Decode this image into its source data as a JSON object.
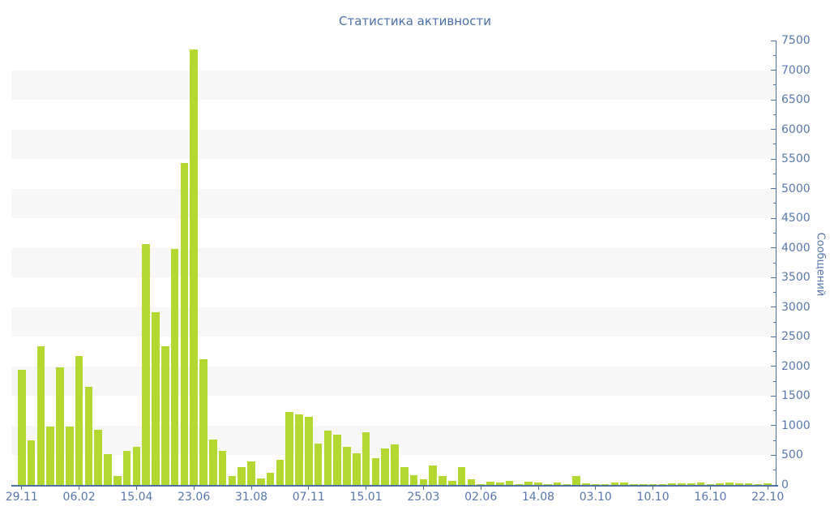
{
  "chart_data": {
    "type": "bar",
    "title": "Статистика активности",
    "ylabel": "Сообщений",
    "xlabel": "",
    "ylim": [
      0,
      7500
    ],
    "y_tick_step": 500,
    "y_minor_tick_step": 250,
    "y_tick_labels": [
      "0",
      "500",
      "1000",
      "1500",
      "2000",
      "2500",
      "3000",
      "3500",
      "4000",
      "4500",
      "5000",
      "5500",
      "6000",
      "6500",
      "7000",
      "7500"
    ],
    "x_tick_labels": [
      "29.11",
      "06.02",
      "15.04",
      "23.06",
      "31.08",
      "07.11",
      "15.01",
      "25.03",
      "02.06",
      "14.08",
      "03.10",
      "10.10",
      "16.10",
      "22.10"
    ],
    "x_label_every_n_bars": 6,
    "values": [
      1940,
      750,
      2340,
      980,
      1990,
      980,
      2170,
      1660,
      925,
      525,
      150,
      570,
      640,
      4070,
      2910,
      2340,
      3980,
      5430,
      7350,
      2120,
      760,
      580,
      150,
      295,
      400,
      110,
      200,
      420,
      1230,
      1190,
      1150,
      700,
      920,
      855,
      640,
      540,
      890,
      455,
      620,
      690,
      305,
      160,
      100,
      330,
      150,
      65,
      295,
      95,
      20,
      50,
      35,
      65,
      20,
      55,
      40,
      20,
      45,
      10,
      150,
      25,
      10,
      10,
      45,
      35,
      20,
      10,
      20,
      15,
      25,
      30,
      25,
      35,
      20,
      25,
      40,
      30,
      25,
      20,
      25
    ],
    "grid": "alternating horizontal bands every 500 units",
    "legend": "none",
    "axis_position": {
      "y_axis": "right",
      "x_axis": "bottom"
    },
    "colors": {
      "bar": "#b2d831",
      "band": "#f7f7f7",
      "axis": "#50709f",
      "tick_text": "#5878ad",
      "title_text": "#4a6fa8",
      "background": "#ffffff"
    }
  }
}
